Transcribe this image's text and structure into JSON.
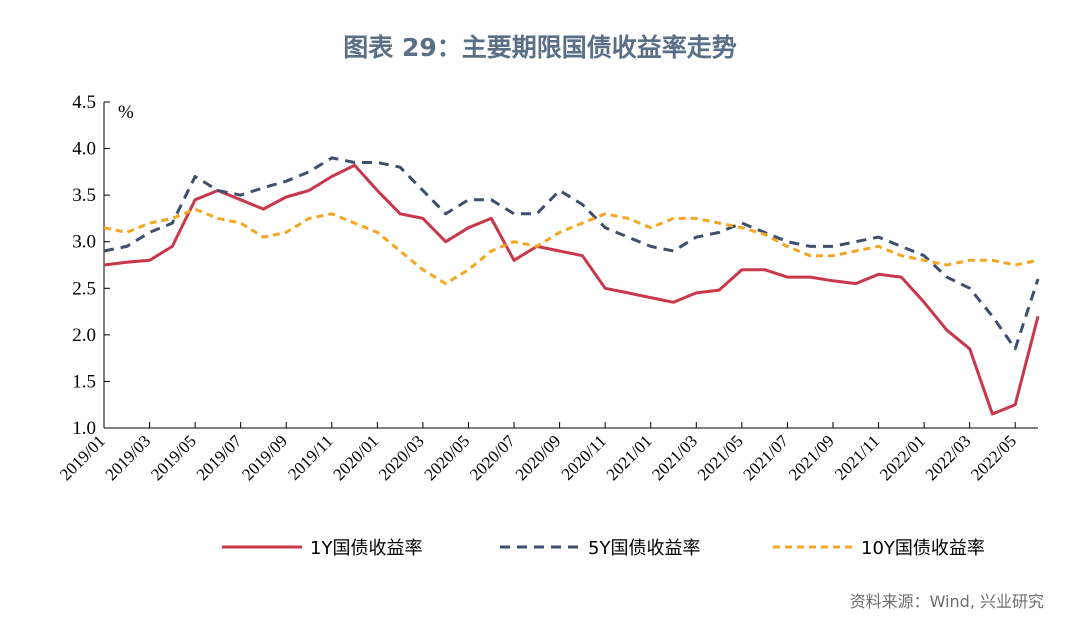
{
  "title": "图表 29：主要期限国债收益率走势",
  "source": "资料来源：Wind, 兴业研究",
  "colors": {
    "y1": "#c8374a",
    "y5": "#3e4f6e",
    "y10": "#f5a623",
    "title": "#5a6f86"
  },
  "chart_data": {
    "type": "line",
    "ylabel": "%",
    "ylim": [
      1.0,
      4.5
    ],
    "yticks": [
      "1.0",
      "1.5",
      "2.0",
      "2.5",
      "3.0",
      "3.5",
      "4.0",
      "4.5"
    ],
    "xticks": [
      "2019/01",
      "2019/03",
      "2019/05",
      "2019/07",
      "2019/09",
      "2019/11",
      "2020/01",
      "2020/03",
      "2020/05",
      "2020/07",
      "2020/09",
      "2020/11",
      "2021/01",
      "2021/03",
      "2021/05",
      "2021/07",
      "2021/09",
      "2021/11",
      "2022/01",
      "2022/03",
      "2022/05"
    ],
    "x": [
      "2019/01",
      "2019/02",
      "2019/03",
      "2019/04",
      "2019/05",
      "2019/06",
      "2019/07",
      "2019/08",
      "2019/09",
      "2019/10",
      "2019/11",
      "2019/12",
      "2020/01",
      "2020/02",
      "2020/03",
      "2020/04",
      "2020/05",
      "2020/06",
      "2020/07",
      "2020/08",
      "2020/09",
      "2020/10",
      "2020/11",
      "2020/12",
      "2021/01",
      "2021/02",
      "2021/03",
      "2021/04",
      "2021/05",
      "2021/06",
      "2021/07",
      "2021/08",
      "2021/09",
      "2021/10",
      "2021/11",
      "2021/12",
      "2022/01",
      "2022/02",
      "2022/03",
      "2022/04",
      "2022/05",
      "2022/06"
    ],
    "series": [
      {
        "name": "1Y国债收益率",
        "values": [
          2.75,
          2.78,
          2.8,
          2.95,
          3.45,
          3.55,
          3.45,
          3.35,
          3.48,
          3.55,
          3.7,
          3.82,
          3.55,
          3.3,
          3.25,
          3.0,
          3.15,
          3.25,
          2.8,
          2.95,
          2.9,
          2.85,
          2.5,
          2.45,
          2.4,
          2.35,
          2.45,
          2.48,
          2.7,
          2.7,
          2.62,
          2.62,
          2.58,
          2.55,
          2.65,
          2.62,
          2.35,
          2.05,
          1.85,
          1.15,
          1.25,
          2.2
        ]
      },
      {
        "name": "5Y国债收益率",
        "values": [
          2.9,
          2.95,
          3.1,
          3.2,
          3.7,
          3.55,
          3.5,
          3.58,
          3.65,
          3.75,
          3.9,
          3.85,
          3.85,
          3.8,
          3.55,
          3.3,
          3.45,
          3.45,
          3.3,
          3.3,
          3.55,
          3.4,
          3.15,
          3.05,
          2.95,
          2.9,
          3.05,
          3.1,
          3.2,
          3.1,
          3.0,
          2.95,
          2.95,
          3.0,
          3.05,
          2.95,
          2.85,
          2.62,
          2.5,
          2.2,
          1.85,
          2.6
        ]
      },
      {
        "name": "10Y国债收益率",
        "values": [
          3.15,
          3.1,
          3.2,
          3.25,
          3.35,
          3.25,
          3.2,
          3.05,
          3.1,
          3.25,
          3.3,
          3.2,
          3.1,
          2.9,
          2.7,
          2.55,
          2.7,
          2.9,
          3.0,
          2.95,
          3.1,
          3.2,
          3.3,
          3.25,
          3.15,
          3.25,
          3.25,
          3.2,
          3.15,
          3.08,
          2.95,
          2.85,
          2.85,
          2.9,
          2.95,
          2.85,
          2.8,
          2.75,
          2.8,
          2.8,
          2.75,
          2.8
        ]
      }
    ]
  }
}
